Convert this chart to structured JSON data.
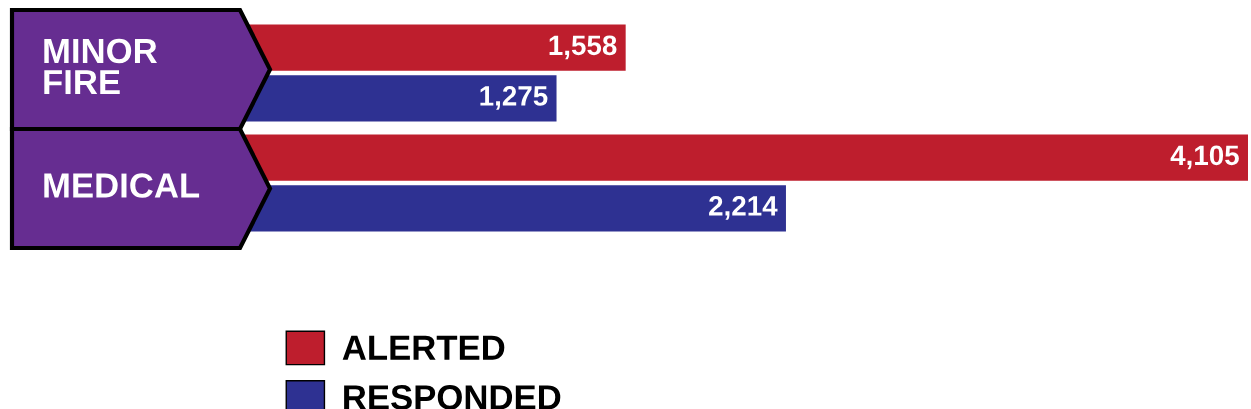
{
  "chart_data": {
    "type": "bar",
    "orientation": "horizontal",
    "categories": [
      "MINOR\nFIRE",
      "MEDICAL"
    ],
    "series": [
      {
        "name": "ALERTED",
        "color": "#be1e2d",
        "values": [
          1558,
          4105
        ],
        "value_labels": [
          "1,558",
          "4,105"
        ]
      },
      {
        "name": "RESPONDED",
        "color": "#2e3192",
        "values": [
          1275,
          2214
        ],
        "value_labels": [
          "1,275",
          "2,214"
        ]
      }
    ],
    "legend": "bottom"
  }
}
